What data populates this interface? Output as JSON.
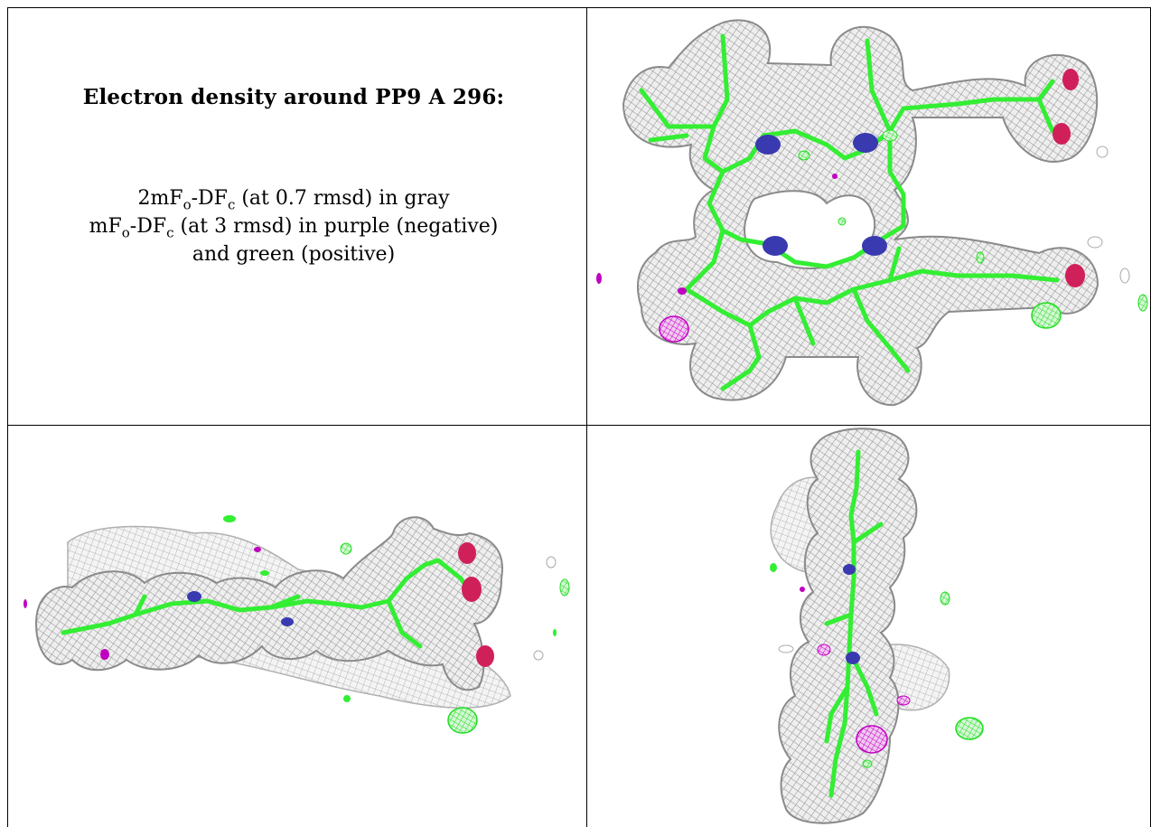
{
  "title": "Electron density around PP9 A 296:",
  "legend": {
    "line1_prefix": "2mF",
    "line1_sub_o": "o",
    "line1_mid": "-DF",
    "line1_sub_c": "c",
    "line1_suffix": " (at 0.7 rmsd) in gray",
    "line2_prefix": "mF",
    "line2_sub_o": "o",
    "line2_mid": "-DF",
    "line2_sub_c": "c",
    "line2_suffix": " (at 3 rmsd) in purple (negative)",
    "line3": "and green (positive)"
  },
  "colors": {
    "mesh_gray": "#8a8a8a",
    "mesh_fill": "#e9e9e9",
    "bond_green": "#33ee33",
    "nitrogen_blue": "#3a3ab0",
    "oxygen_red": "#d0205a",
    "negative_purple": "#c000c0",
    "positive_green": "#22dd22"
  },
  "panels": [
    {
      "name": "legend-panel"
    },
    {
      "name": "front-view",
      "icon": "porphyrin-ring-density"
    },
    {
      "name": "side-view",
      "icon": "porphyrin-edge-density"
    },
    {
      "name": "end-view",
      "icon": "porphyrin-end-density"
    }
  ]
}
